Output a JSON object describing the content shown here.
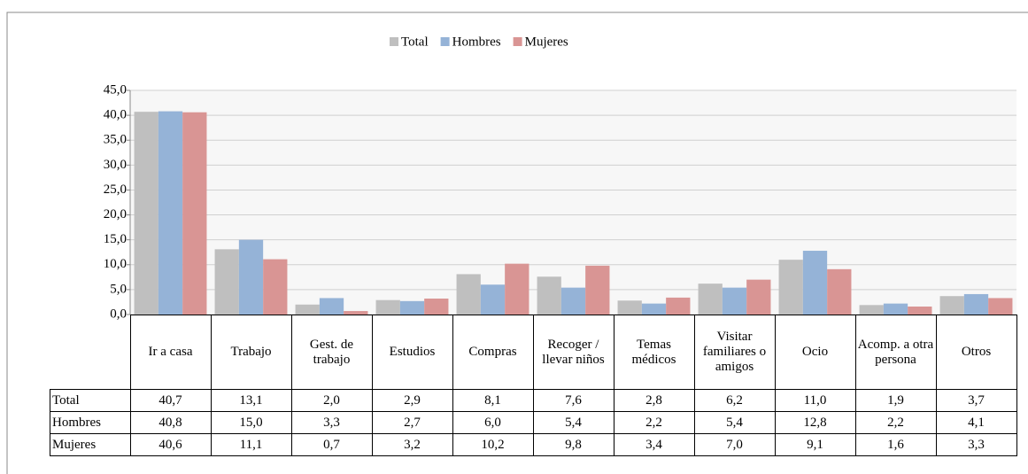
{
  "chart_data": {
    "type": "bar",
    "categories": [
      "Ir a casa",
      "Trabajo",
      "Gest. de trabajo",
      "Estudios",
      "Compras",
      "Recoger / llevar niños",
      "Temas médicos",
      "Visitar familiares o amigos",
      "Ocio",
      "Acomp. a otra persona",
      "Otros"
    ],
    "series": [
      {
        "name": "Total",
        "color": "#bfbfbf",
        "values": [
          40.7,
          13.1,
          2.0,
          2.9,
          8.1,
          7.6,
          2.8,
          6.2,
          11.0,
          1.9,
          3.7
        ],
        "value_labels": [
          "40,7",
          "13,1",
          "2,0",
          "2,9",
          "8,1",
          "7,6",
          "2,8",
          "6,2",
          "11,0",
          "1,9",
          "3,7"
        ]
      },
      {
        "name": "Hombres",
        "color": "#95b3d7",
        "values": [
          40.8,
          15.0,
          3.3,
          2.7,
          6.0,
          5.4,
          2.2,
          5.4,
          12.8,
          2.2,
          4.1
        ],
        "value_labels": [
          "40,8",
          "15,0",
          "3,3",
          "2,7",
          "6,0",
          "5,4",
          "2,2",
          "5,4",
          "12,8",
          "2,2",
          "4,1"
        ]
      },
      {
        "name": "Mujeres",
        "color": "#d99594",
        "values": [
          40.6,
          11.1,
          0.7,
          3.2,
          10.2,
          9.8,
          3.4,
          7.0,
          9.1,
          1.6,
          3.3
        ],
        "value_labels": [
          "40,6",
          "11,1",
          "0,7",
          "3,2",
          "10,2",
          "9,8",
          "3,4",
          "7,0",
          "9,1",
          "1,6",
          "3,3"
        ]
      }
    ],
    "ylim": [
      0,
      45
    ],
    "yticks": [
      {
        "value": 0,
        "label": "0,0"
      },
      {
        "value": 5,
        "label": "5,0"
      },
      {
        "value": 10,
        "label": "10,0"
      },
      {
        "value": 15,
        "label": "15,0"
      },
      {
        "value": 20,
        "label": "20,0"
      },
      {
        "value": 25,
        "label": "25,0"
      },
      {
        "value": 30,
        "label": "30,0"
      },
      {
        "value": 35,
        "label": "35,0"
      },
      {
        "value": 40,
        "label": "40,0"
      },
      {
        "value": 45,
        "label": "45,0"
      }
    ],
    "grid": true,
    "legend": "top"
  }
}
